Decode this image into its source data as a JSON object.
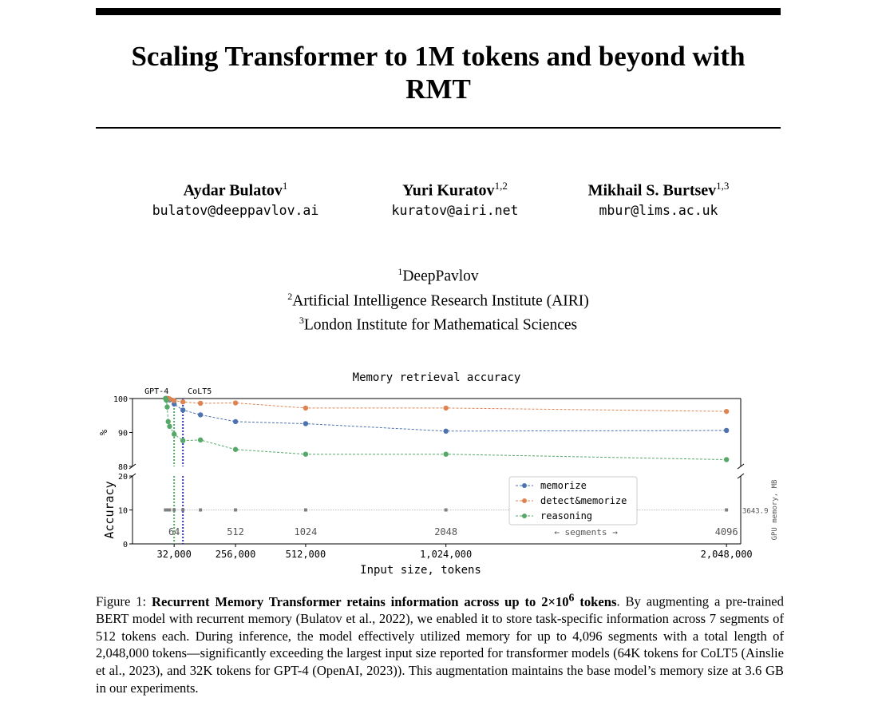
{
  "paper": {
    "title": "Scaling Transformer to 1M tokens and beyond with RMT",
    "authors": [
      {
        "name": "Aydar Bulatov",
        "sup": "1",
        "email": "bulatov@deeppavlov.ai"
      },
      {
        "name": "Yuri Kuratov",
        "sup": "1,2",
        "email": "kuratov@airi.net"
      },
      {
        "name": "Mikhail S. Burtsev",
        "sup": "1,3",
        "email": "mbur@lims.ac.uk"
      }
    ],
    "affiliations": [
      {
        "sup": "1",
        "text": "DeepPavlov"
      },
      {
        "sup": "2",
        "text": "Artificial Intelligence Research Institute (AIRI)"
      },
      {
        "sup": "3",
        "text": "London Institute for Mathematical Sciences"
      }
    ]
  },
  "figure": {
    "caption_label": "Figure 1: ",
    "caption_bold": "Recurrent Memory Transformer retains information across up to 2×10",
    "caption_bold_sup": "6",
    "caption_bold_end": " tokens",
    "caption_text": ". By augmenting a pre-trained BERT model with recurrent memory (Bulatov et al., 2022), we enabled it to store task-specific information across 7 segments of 512 tokens each. During inference, the model effectively utilized memory for up to 4,096 segments with a total length of 2,048,000 tokens—significantly exceeding the largest input size reported for transformer models (64K tokens for CoLT5 (Ainslie et al., 2023), and 32K tokens for GPT-4 (OpenAI, 2023)). This augmentation maintains the base model’s memory size at 3.6 GB in our experiments."
  },
  "chart_data": {
    "type": "line",
    "title": "Memory retrieval accuracy",
    "xlabel": "Input size, tokens",
    "ylabel": "Accuracy",
    "upper_ylabel": "%",
    "right_ylabel": "GPU memory, MB",
    "xlim": [
      -120000,
      2100000
    ],
    "upper_ylim": [
      80,
      100
    ],
    "upper_yticks": [
      80,
      90,
      100
    ],
    "lower_ylim": [
      0,
      20
    ],
    "lower_yticks": [
      0,
      10,
      20
    ],
    "x_tick_values": [
      32000,
      256000,
      512000,
      1024000,
      2048000
    ],
    "x_tick_labels": [
      "32,000",
      "256,000",
      "512,000",
      "1,024,000",
      "2,048,000"
    ],
    "vlines": [
      {
        "label": "GPT-4",
        "x": 32000,
        "color": "#55a868"
      },
      {
        "label": "CoLT5",
        "x": 64000,
        "color": "#3333aa"
      }
    ],
    "series": [
      {
        "name": "memorize",
        "color": "#4c72b0",
        "x": [
          512,
          3584,
          6656,
          10240,
          15360,
          32000,
          64000,
          128000,
          256000,
          512000,
          1024000,
          2048000
        ],
        "y": [
          100,
          100,
          100,
          99.8,
          99.6,
          98.4,
          96.6,
          95.2,
          93.2,
          92.6,
          90.4,
          90.6
        ]
      },
      {
        "name": "detect&memorize",
        "color": "#dd8452",
        "x": [
          512,
          3584,
          6656,
          10240,
          15360,
          32000,
          64000,
          128000,
          256000,
          512000,
          1024000,
          2048000
        ],
        "y": [
          100,
          100,
          100,
          100,
          99.9,
          99.4,
          99.0,
          98.6,
          98.7,
          97.2,
          97.2,
          96.2
        ]
      },
      {
        "name": "reasoning",
        "color": "#55a868",
        "x": [
          512,
          3584,
          6656,
          10240,
          15360,
          32000,
          64000,
          128000,
          256000,
          512000,
          1024000,
          2048000
        ],
        "y": [
          100,
          99.5,
          97.5,
          93.2,
          91.8,
          89.5,
          87.6,
          87.8,
          85.0,
          83.6,
          83.6,
          82.0
        ]
      },
      {
        "name": "GPU memory",
        "color": "#7f7f7f",
        "x": [
          512,
          3584,
          6656,
          10240,
          15360,
          32000,
          64000,
          128000,
          256000,
          512000,
          1024000,
          2048000
        ],
        "y": [
          3643.9,
          3643.9,
          3643.9,
          3643.9,
          3643.9,
          3643.9,
          3643.9,
          3643.9,
          3643.9,
          3643.9,
          3643.9,
          3643.9
        ]
      }
    ],
    "gpu_memory_label": "3643.9",
    "segments": [
      {
        "x": 32000,
        "label": "64"
      },
      {
        "x": 256000,
        "label": "512"
      },
      {
        "x": 512000,
        "label": "1024"
      },
      {
        "x": 1024000,
        "label": "2048"
      },
      {
        "x": 2048000,
        "label": "4096"
      }
    ],
    "segments_label": "← segments →",
    "legend_position": "lower-right",
    "grid": false
  }
}
